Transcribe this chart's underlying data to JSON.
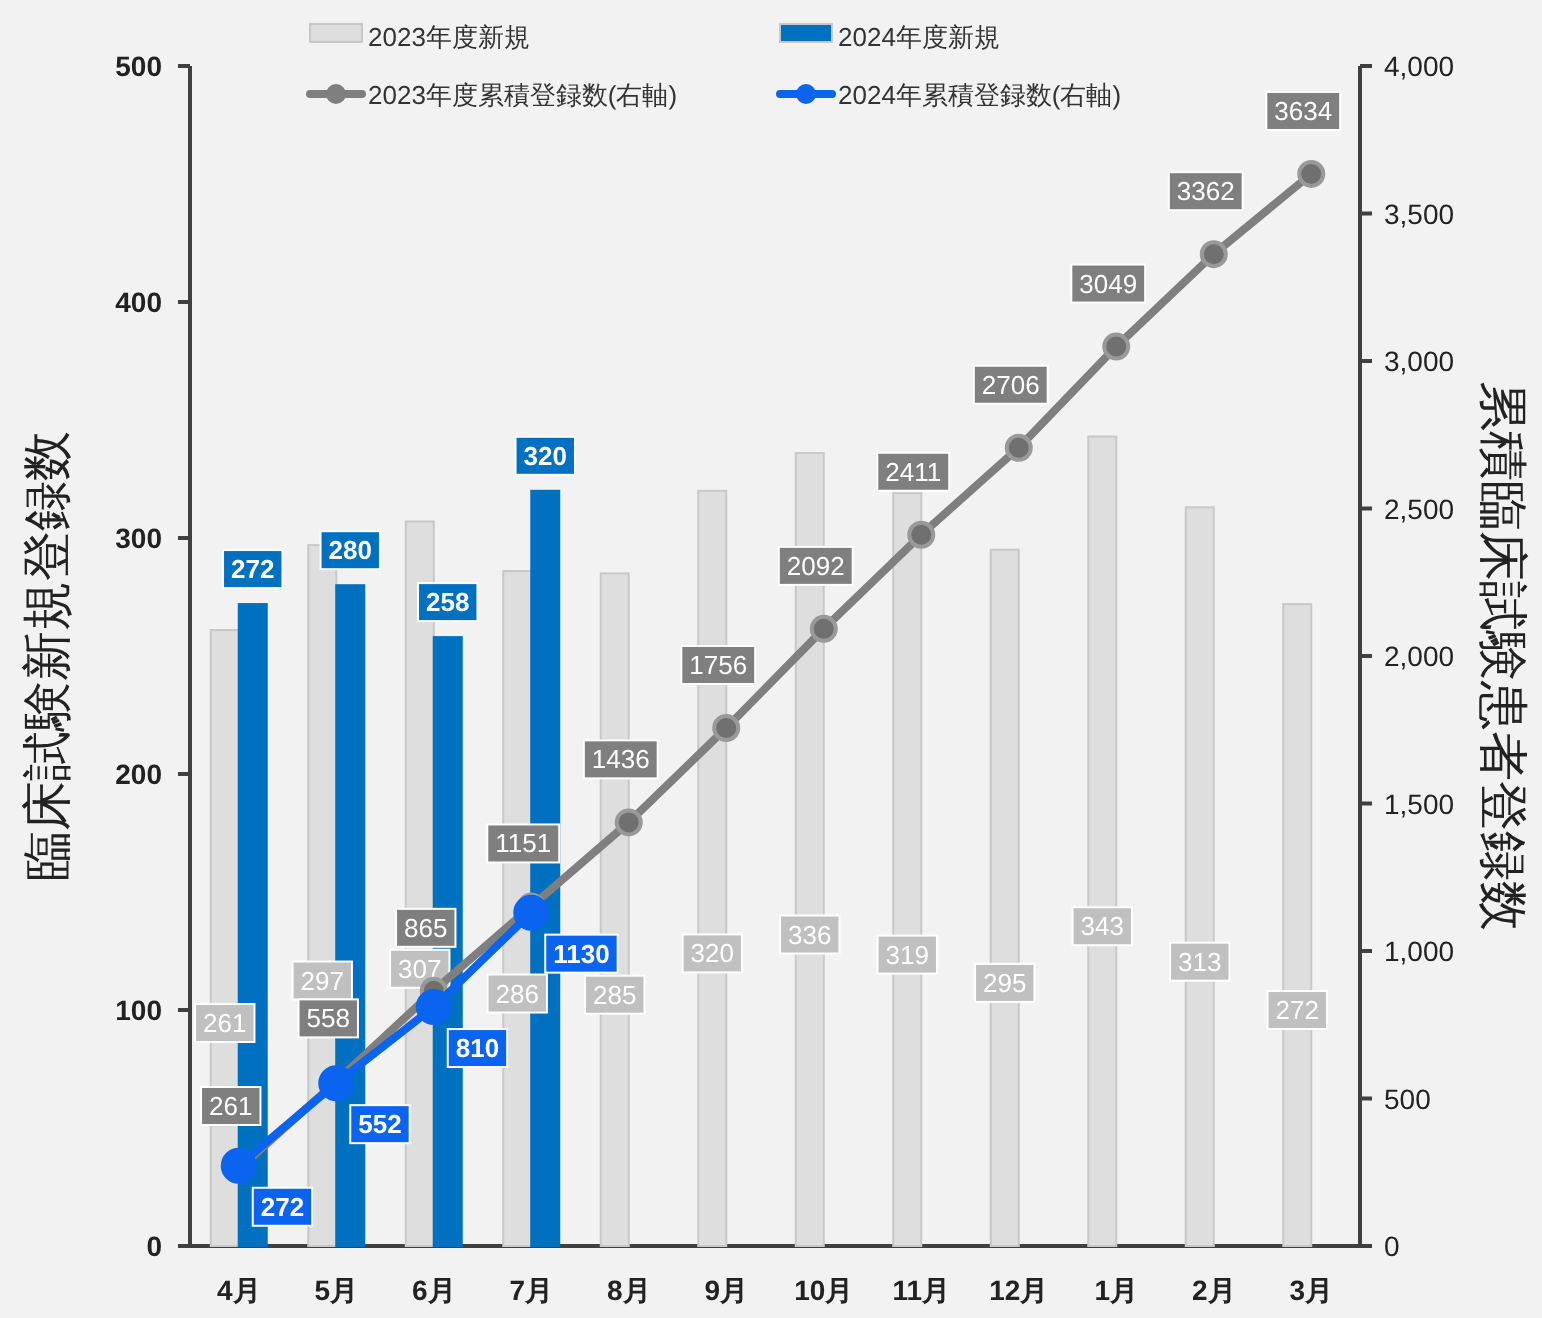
{
  "chart_data": {
    "type": "bar",
    "categories": [
      "4月",
      "5月",
      "6月",
      "7月",
      "8月",
      "9月",
      "10月",
      "11月",
      "12月",
      "1月",
      "2月",
      "3月"
    ],
    "ylabel": "臨床試験新規登録数",
    "y2label": "累積臨床試験患者登録数",
    "ylim": [
      0,
      500
    ],
    "yticks": [
      0,
      100,
      200,
      300,
      400,
      500
    ],
    "y2lim": [
      0,
      4000
    ],
    "y2ticks": [
      0,
      500,
      {
        "value": 1000,
        "label": "1,000"
      },
      {
        "value": 1500,
        "label": "1,500"
      },
      {
        "value": 2000,
        "label": "2,000"
      },
      {
        "value": 2500,
        "label": "2,500"
      },
      {
        "value": 3000,
        "label": "3,000"
      },
      {
        "value": 3500,
        "label": "3,500"
      },
      {
        "value": 4000,
        "label": "4,000"
      }
    ],
    "series": [
      {
        "name": "2023年度新規",
        "type": "bar",
        "color": "#dedede",
        "values": [
          261,
          297,
          307,
          286,
          285,
          320,
          336,
          319,
          295,
          343,
          313,
          272
        ]
      },
      {
        "name": "2024年度新規",
        "type": "bar",
        "color": "#0070c0",
        "values": [
          272,
          280,
          258,
          320,
          null,
          null,
          null,
          null,
          null,
          null,
          null,
          null
        ]
      },
      {
        "name": "2023年度累積登録数(右軸)",
        "type": "line",
        "axis": "y2",
        "color": "#7f7f7f",
        "values": [
          261,
          558,
          865,
          1151,
          1436,
          1756,
          2092,
          2411,
          2706,
          3049,
          3362,
          3634
        ]
      },
      {
        "name": "2024年累積登録数(右軸)",
        "type": "line",
        "axis": "y2",
        "color": "#0a64f0",
        "values": [
          272,
          552,
          810,
          1130,
          null,
          null,
          null,
          null,
          null,
          null,
          null,
          null
        ]
      }
    ],
    "data_labels": true,
    "legend": "top",
    "marker": "circle",
    "grid": false
  }
}
